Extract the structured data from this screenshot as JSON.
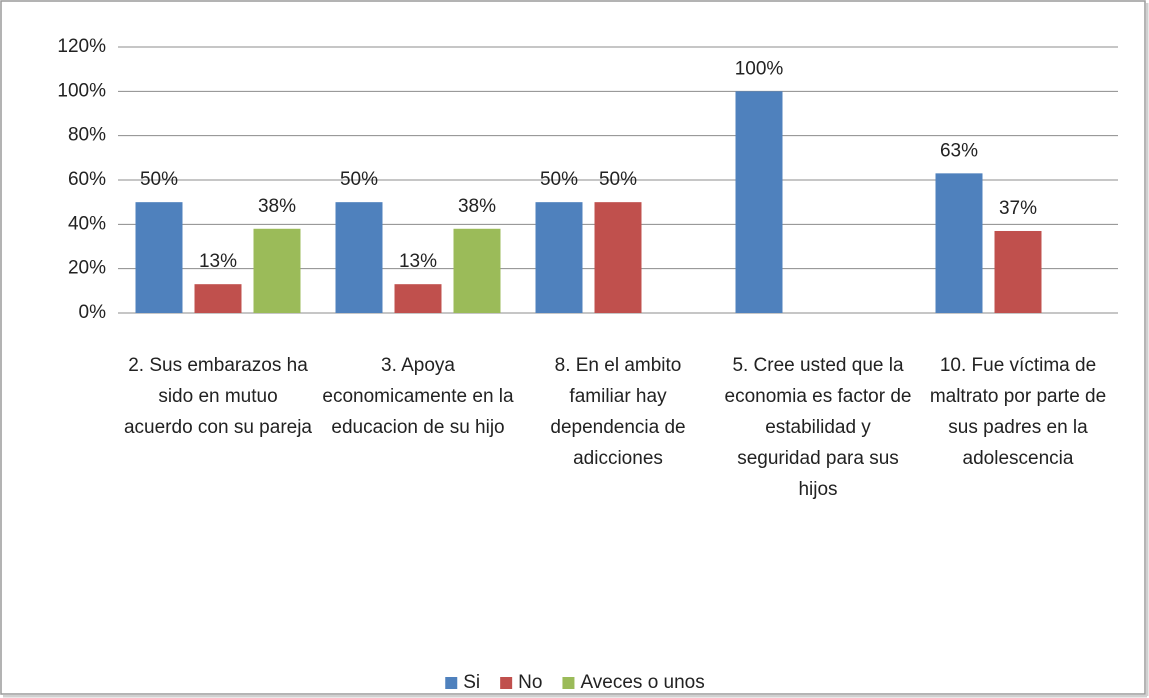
{
  "chart_data": {
    "type": "bar",
    "categories": [
      "2. Sus embarazos ha sido en mutuo acuerdo con su pareja",
      "3. Apoya economicamente en la educacion de su hijo",
      "8. En el ambito familiar hay dependencia de adicciones",
      "5. Cree usted que la economia es factor de estabilidad y seguridad para sus hijos",
      "10. Fue víctima de maltrato por parte de sus padres en la adolescencia"
    ],
    "series": [
      {
        "name": "Si",
        "color": "#4f81bd",
        "values": [
          50,
          50,
          50,
          100,
          63
        ],
        "value_labels": [
          "50%",
          "50%",
          "50%",
          "100%",
          "63%"
        ]
      },
      {
        "name": "No",
        "color": "#c0504d",
        "values": [
          13,
          13,
          50,
          null,
          37
        ],
        "value_labels": [
          "13%",
          "13%",
          "50%",
          null,
          "37%"
        ]
      },
      {
        "name": "Aveces o unos",
        "color": "#9bbb59",
        "values": [
          38,
          38,
          null,
          null,
          null
        ],
        "value_labels": [
          "38%",
          "38%",
          null,
          null,
          null
        ]
      }
    ],
    "ylim": [
      0,
      120
    ],
    "yticks": [
      {
        "value": 0,
        "label": "0%"
      },
      {
        "value": 20,
        "label": "20%"
      },
      {
        "value": 40,
        "label": "40%"
      },
      {
        "value": 60,
        "label": "60%"
      },
      {
        "value": 80,
        "label": "80%"
      },
      {
        "value": 100,
        "label": "100%"
      },
      {
        "value": 120,
        "label": "120%"
      }
    ],
    "grid": true,
    "legend": "bottom"
  }
}
